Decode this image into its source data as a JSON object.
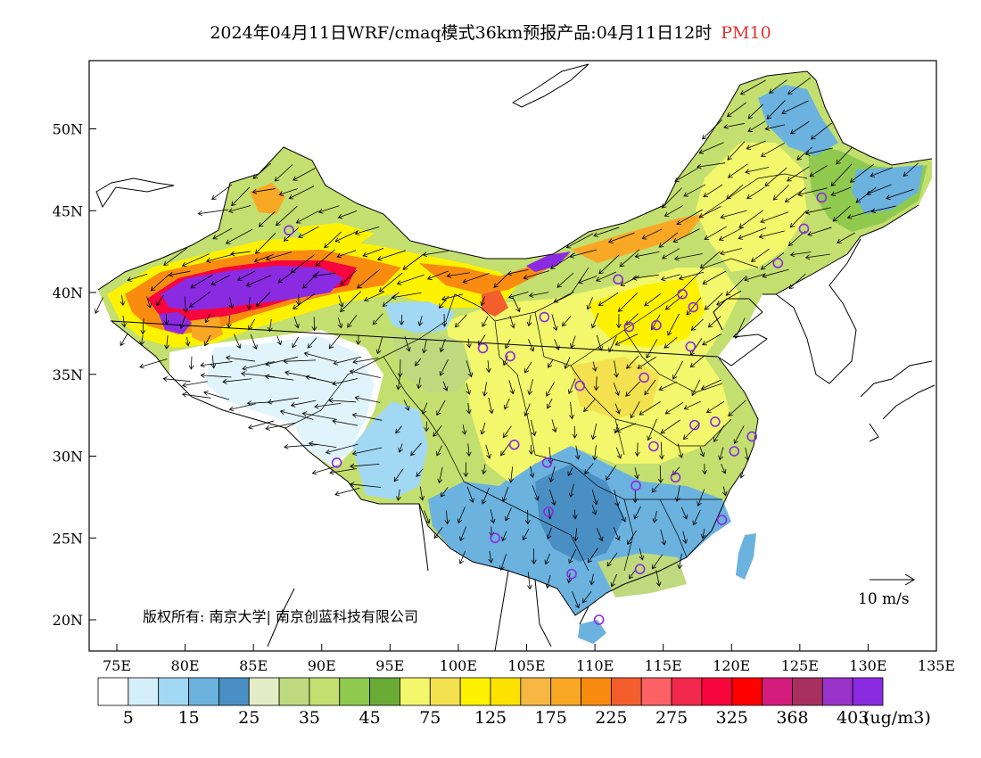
{
  "title": {
    "main": "2024年04月11日WRF/cmaq模式36km预报产品:04月11日12时",
    "variable": "PM10",
    "variable_color": "#e0322f"
  },
  "axes": {
    "x_ticks": [
      "75E",
      "80E",
      "85E",
      "90E",
      "95E",
      "100E",
      "105E",
      "110E",
      "115E",
      "120E",
      "125E",
      "130E",
      "135E"
    ],
    "y_ticks": [
      "20N",
      "25N",
      "30N",
      "35N",
      "40N",
      "45N",
      "50N"
    ],
    "lon_range": [
      73,
      135
    ],
    "lat_range": [
      18,
      54
    ]
  },
  "copyright": "版权所有: 南京大学| 南京创蓝科技有限公司",
  "wind_reference": "10 m/s",
  "legend": {
    "colors": [
      "#ffffff",
      "#d4eefa",
      "#a2d8f3",
      "#6bb2df",
      "#4a8fc4",
      "#e3ecc4",
      "#bed97e",
      "#c3df6f",
      "#8fca4f",
      "#6aab35",
      "#f2f76b",
      "#f3e14f",
      "#fff200",
      "#fde200",
      "#f7b843",
      "#f9a825",
      "#f98c10",
      "#f35e2c",
      "#fc6266",
      "#f2284c",
      "#f6063c",
      "#ff0000",
      "#d41c7c",
      "#a8305f",
      "#9a33c9",
      "#8a2be2"
    ],
    "labels": [
      "5",
      "15",
      "25",
      "35",
      "45",
      "75",
      "125",
      "175",
      "225",
      "275",
      "325",
      "368",
      "403"
    ],
    "unit": "(ug/m3)"
  },
  "cities": [
    {
      "lon": 116.4,
      "lat": 39.9
    },
    {
      "lon": 117.2,
      "lat": 39.1
    },
    {
      "lon": 114.5,
      "lat": 38.0
    },
    {
      "lon": 112.5,
      "lat": 37.9
    },
    {
      "lon": 111.7,
      "lat": 40.8
    },
    {
      "lon": 123.4,
      "lat": 41.8
    },
    {
      "lon": 125.3,
      "lat": 43.9
    },
    {
      "lon": 126.6,
      "lat": 45.8
    },
    {
      "lon": 117.0,
      "lat": 36.7
    },
    {
      "lon": 113.6,
      "lat": 34.8
    },
    {
      "lon": 118.8,
      "lat": 32.1
    },
    {
      "lon": 121.5,
      "lat": 31.2
    },
    {
      "lon": 120.2,
      "lat": 30.3
    },
    {
      "lon": 117.3,
      "lat": 31.9
    },
    {
      "lon": 115.9,
      "lat": 28.7
    },
    {
      "lon": 119.3,
      "lat": 26.1
    },
    {
      "lon": 114.3,
      "lat": 30.6
    },
    {
      "lon": 113.0,
      "lat": 28.2
    },
    {
      "lon": 113.3,
      "lat": 23.1
    },
    {
      "lon": 108.3,
      "lat": 22.8
    },
    {
      "lon": 110.3,
      "lat": 20.0
    },
    {
      "lon": 106.6,
      "lat": 26.6
    },
    {
      "lon": 102.7,
      "lat": 25.0
    },
    {
      "lon": 104.1,
      "lat": 30.7
    },
    {
      "lon": 106.5,
      "lat": 29.6
    },
    {
      "lon": 108.9,
      "lat": 34.3
    },
    {
      "lon": 103.8,
      "lat": 36.1
    },
    {
      "lon": 101.8,
      "lat": 36.6
    },
    {
      "lon": 106.3,
      "lat": 38.5
    },
    {
      "lon": 87.6,
      "lat": 43.8
    },
    {
      "lon": 91.1,
      "lat": 29.6
    }
  ]
}
